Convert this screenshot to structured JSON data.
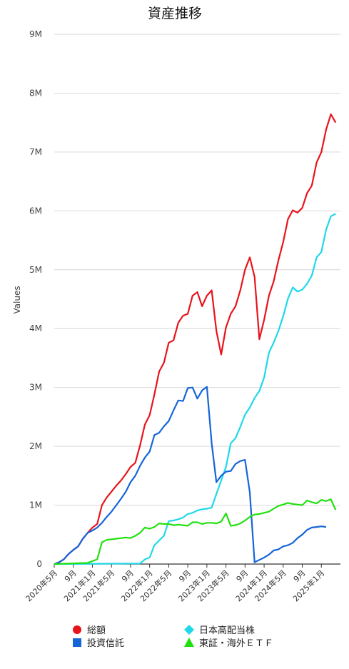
{
  "chart_data": {
    "type": "line",
    "title": "資産推移",
    "ylabel": "Values",
    "xlabel": "",
    "ylim": [
      0,
      9000000
    ],
    "yticks": [
      {
        "value": 0,
        "label": "0"
      },
      {
        "value": 1000000,
        "label": "1M"
      },
      {
        "value": 2000000,
        "label": "2M"
      },
      {
        "value": 3000000,
        "label": "3M"
      },
      {
        "value": 4000000,
        "label": "4M"
      },
      {
        "value": 5000000,
        "label": "5M"
      },
      {
        "value": 6000000,
        "label": "6M"
      },
      {
        "value": 7000000,
        "label": "7M"
      },
      {
        "value": 8000000,
        "label": "8M"
      },
      {
        "value": 9000000,
        "label": "9M"
      }
    ],
    "x_range": [
      "2020-05",
      "2025-05"
    ],
    "xticks": [
      {
        "month": "2020-05",
        "label": "2020年5月"
      },
      {
        "month": "2020-09",
        "label": "9月"
      },
      {
        "month": "2021-01",
        "label": "2021年1月"
      },
      {
        "month": "2021-05",
        "label": "2021年5月"
      },
      {
        "month": "2021-09",
        "label": "9月"
      },
      {
        "month": "2022-01",
        "label": "2022年1月"
      },
      {
        "month": "2022-05",
        "label": "2022年5月"
      },
      {
        "month": "2022-09",
        "label": "9月"
      },
      {
        "month": "2023-01",
        "label": "2023年1月"
      },
      {
        "month": "2023-05",
        "label": "2023年5月"
      },
      {
        "month": "2023-09",
        "label": "9月"
      },
      {
        "month": "2024-01",
        "label": "2024年1月"
      },
      {
        "month": "2024-05",
        "label": "2024年5月"
      },
      {
        "month": "2024-09",
        "label": "9月"
      },
      {
        "month": "2025-01",
        "label": "2025年1月"
      }
    ],
    "grid": true,
    "legend_position": "bottom",
    "series": [
      {
        "name": "総額",
        "color": "#e8141b",
        "marker": "circle",
        "points": [
          [
            "2020-05",
            0
          ],
          [
            "2020-06",
            30000
          ],
          [
            "2020-07",
            80000
          ],
          [
            "2020-08",
            170000
          ],
          [
            "2020-09",
            240000
          ],
          [
            "2020-10",
            300000
          ],
          [
            "2020-11",
            430000
          ],
          [
            "2020-12",
            530000
          ],
          [
            "2021-01",
            620000
          ],
          [
            "2021-02",
            680000
          ],
          [
            "2021-03",
            1000000
          ],
          [
            "2021-04",
            1130000
          ],
          [
            "2021-05",
            1230000
          ],
          [
            "2021-06",
            1330000
          ],
          [
            "2021-07",
            1420000
          ],
          [
            "2021-08",
            1530000
          ],
          [
            "2021-09",
            1650000
          ],
          [
            "2021-10",
            1720000
          ],
          [
            "2021-11",
            2020000
          ],
          [
            "2021-12",
            2370000
          ],
          [
            "2022-01",
            2530000
          ],
          [
            "2022-02",
            2880000
          ],
          [
            "2022-03",
            3270000
          ],
          [
            "2022-04",
            3420000
          ],
          [
            "2022-05",
            3760000
          ],
          [
            "2022-06",
            3800000
          ],
          [
            "2022-07",
            4100000
          ],
          [
            "2022-08",
            4220000
          ],
          [
            "2022-09",
            4250000
          ],
          [
            "2022-10",
            4560000
          ],
          [
            "2022-11",
            4620000
          ],
          [
            "2022-12",
            4380000
          ],
          [
            "2023-01",
            4560000
          ],
          [
            "2023-02",
            4650000
          ],
          [
            "2023-03",
            3960000
          ],
          [
            "2023-04",
            3560000
          ],
          [
            "2023-05",
            4020000
          ],
          [
            "2023-06",
            4250000
          ],
          [
            "2023-07",
            4380000
          ],
          [
            "2023-08",
            4650000
          ],
          [
            "2023-09",
            5000000
          ],
          [
            "2023-10",
            5210000
          ],
          [
            "2023-11",
            4880000
          ],
          [
            "2023-12",
            3820000
          ],
          [
            "2024-01",
            4150000
          ],
          [
            "2024-02",
            4560000
          ],
          [
            "2024-03",
            4800000
          ],
          [
            "2024-04",
            5160000
          ],
          [
            "2024-05",
            5470000
          ],
          [
            "2024-06",
            5860000
          ],
          [
            "2024-07",
            6010000
          ],
          [
            "2024-08",
            5970000
          ],
          [
            "2024-09",
            6050000
          ],
          [
            "2024-10",
            6300000
          ],
          [
            "2024-11",
            6430000
          ],
          [
            "2024-12",
            6820000
          ],
          [
            "2025-01",
            7000000
          ],
          [
            "2025-02",
            7380000
          ],
          [
            "2025-03",
            7640000
          ],
          [
            "2025-04",
            7500000
          ]
        ]
      },
      {
        "name": "日本高配当株",
        "color": "#1fd8e8",
        "marker": "diamond",
        "points": [
          [
            "2020-05",
            0
          ],
          [
            "2021-11",
            10000
          ],
          [
            "2021-12",
            80000
          ],
          [
            "2022-01",
            110000
          ],
          [
            "2022-02",
            320000
          ],
          [
            "2022-03",
            400000
          ],
          [
            "2022-04",
            480000
          ],
          [
            "2022-05",
            730000
          ],
          [
            "2022-06",
            740000
          ],
          [
            "2022-07",
            760000
          ],
          [
            "2022-08",
            790000
          ],
          [
            "2022-09",
            850000
          ],
          [
            "2022-10",
            870000
          ],
          [
            "2022-11",
            910000
          ],
          [
            "2022-12",
            930000
          ],
          [
            "2023-01",
            940000
          ],
          [
            "2023-02",
            960000
          ],
          [
            "2023-03",
            1190000
          ],
          [
            "2023-04",
            1420000
          ],
          [
            "2023-05",
            1650000
          ],
          [
            "2023-06",
            2050000
          ],
          [
            "2023-07",
            2140000
          ],
          [
            "2023-08",
            2330000
          ],
          [
            "2023-09",
            2540000
          ],
          [
            "2023-10",
            2660000
          ],
          [
            "2023-11",
            2820000
          ],
          [
            "2023-12",
            2940000
          ],
          [
            "2024-01",
            3170000
          ],
          [
            "2024-02",
            3590000
          ],
          [
            "2024-03",
            3760000
          ],
          [
            "2024-04",
            3960000
          ],
          [
            "2024-05",
            4210000
          ],
          [
            "2024-06",
            4510000
          ],
          [
            "2024-07",
            4700000
          ],
          [
            "2024-08",
            4630000
          ],
          [
            "2024-09",
            4660000
          ],
          [
            "2024-10",
            4760000
          ],
          [
            "2024-11",
            4900000
          ],
          [
            "2024-12",
            5210000
          ],
          [
            "2025-01",
            5300000
          ],
          [
            "2025-02",
            5680000
          ],
          [
            "2025-03",
            5910000
          ],
          [
            "2025-04",
            5950000
          ]
        ]
      },
      {
        "name": "投資信託",
        "color": "#1565d8",
        "marker": "square",
        "points": [
          [
            "2020-05",
            0
          ],
          [
            "2020-06",
            30000
          ],
          [
            "2020-07",
            80000
          ],
          [
            "2020-08",
            170000
          ],
          [
            "2020-09",
            240000
          ],
          [
            "2020-10",
            300000
          ],
          [
            "2020-11",
            430000
          ],
          [
            "2020-12",
            530000
          ],
          [
            "2021-01",
            570000
          ],
          [
            "2021-02",
            620000
          ],
          [
            "2021-03",
            700000
          ],
          [
            "2021-04",
            800000
          ],
          [
            "2021-05",
            890000
          ],
          [
            "2021-06",
            1000000
          ],
          [
            "2021-07",
            1110000
          ],
          [
            "2021-08",
            1230000
          ],
          [
            "2021-09",
            1390000
          ],
          [
            "2021-10",
            1500000
          ],
          [
            "2021-11",
            1670000
          ],
          [
            "2021-12",
            1810000
          ],
          [
            "2022-01",
            1910000
          ],
          [
            "2022-02",
            2190000
          ],
          [
            "2022-03",
            2230000
          ],
          [
            "2022-04",
            2340000
          ],
          [
            "2022-05",
            2430000
          ],
          [
            "2022-06",
            2610000
          ],
          [
            "2022-07",
            2780000
          ],
          [
            "2022-08",
            2770000
          ],
          [
            "2022-09",
            2990000
          ],
          [
            "2022-10",
            3000000
          ],
          [
            "2022-11",
            2810000
          ],
          [
            "2022-12",
            2950000
          ],
          [
            "2023-01",
            3010000
          ],
          [
            "2023-02",
            2050000
          ],
          [
            "2023-03",
            1390000
          ],
          [
            "2023-04",
            1500000
          ],
          [
            "2023-05",
            1570000
          ],
          [
            "2023-06",
            1580000
          ],
          [
            "2023-07",
            1700000
          ],
          [
            "2023-08",
            1750000
          ],
          [
            "2023-09",
            1770000
          ],
          [
            "2023-10",
            1220000
          ],
          [
            "2023-11",
            30000
          ],
          [
            "2023-12",
            70000
          ],
          [
            "2024-01",
            110000
          ],
          [
            "2024-02",
            160000
          ],
          [
            "2024-03",
            230000
          ],
          [
            "2024-04",
            250000
          ],
          [
            "2024-05",
            300000
          ],
          [
            "2024-06",
            320000
          ],
          [
            "2024-07",
            360000
          ],
          [
            "2024-08",
            440000
          ],
          [
            "2024-09",
            500000
          ],
          [
            "2024-10",
            580000
          ],
          [
            "2024-11",
            620000
          ],
          [
            "2024-12",
            630000
          ],
          [
            "2025-01",
            640000
          ],
          [
            "2025-02",
            630000
          ]
        ]
      },
      {
        "name": "東証・海外ＥＴＦ",
        "color": "#22e010",
        "marker": "triangle",
        "points": [
          [
            "2020-05",
            0
          ],
          [
            "2020-12",
            20000
          ],
          [
            "2021-01",
            50000
          ],
          [
            "2021-02",
            80000
          ],
          [
            "2021-03",
            370000
          ],
          [
            "2021-04",
            410000
          ],
          [
            "2021-05",
            420000
          ],
          [
            "2021-06",
            430000
          ],
          [
            "2021-07",
            440000
          ],
          [
            "2021-08",
            450000
          ],
          [
            "2021-09",
            440000
          ],
          [
            "2021-10",
            480000
          ],
          [
            "2021-11",
            530000
          ],
          [
            "2021-12",
            620000
          ],
          [
            "2022-01",
            600000
          ],
          [
            "2022-02",
            630000
          ],
          [
            "2022-03",
            690000
          ],
          [
            "2022-04",
            680000
          ],
          [
            "2022-05",
            680000
          ],
          [
            "2022-06",
            660000
          ],
          [
            "2022-07",
            670000
          ],
          [
            "2022-08",
            660000
          ],
          [
            "2022-09",
            650000
          ],
          [
            "2022-10",
            710000
          ],
          [
            "2022-11",
            710000
          ],
          [
            "2022-12",
            680000
          ],
          [
            "2023-01",
            700000
          ],
          [
            "2023-02",
            700000
          ],
          [
            "2023-03",
            690000
          ],
          [
            "2023-04",
            720000
          ],
          [
            "2023-05",
            860000
          ],
          [
            "2023-06",
            650000
          ],
          [
            "2023-07",
            660000
          ],
          [
            "2023-08",
            690000
          ],
          [
            "2023-09",
            740000
          ],
          [
            "2023-10",
            800000
          ],
          [
            "2023-11",
            840000
          ],
          [
            "2023-12",
            850000
          ],
          [
            "2024-01",
            870000
          ],
          [
            "2024-02",
            890000
          ],
          [
            "2024-03",
            940000
          ],
          [
            "2024-04",
            990000
          ],
          [
            "2024-05",
            1010000
          ],
          [
            "2024-06",
            1040000
          ],
          [
            "2024-07",
            1020000
          ],
          [
            "2024-08",
            1010000
          ],
          [
            "2024-09",
            1000000
          ],
          [
            "2024-10",
            1080000
          ],
          [
            "2024-11",
            1050000
          ],
          [
            "2024-12",
            1030000
          ],
          [
            "2025-01",
            1090000
          ],
          [
            "2025-02",
            1070000
          ],
          [
            "2025-03",
            1100000
          ],
          [
            "2025-04",
            920000
          ]
        ]
      }
    ]
  }
}
